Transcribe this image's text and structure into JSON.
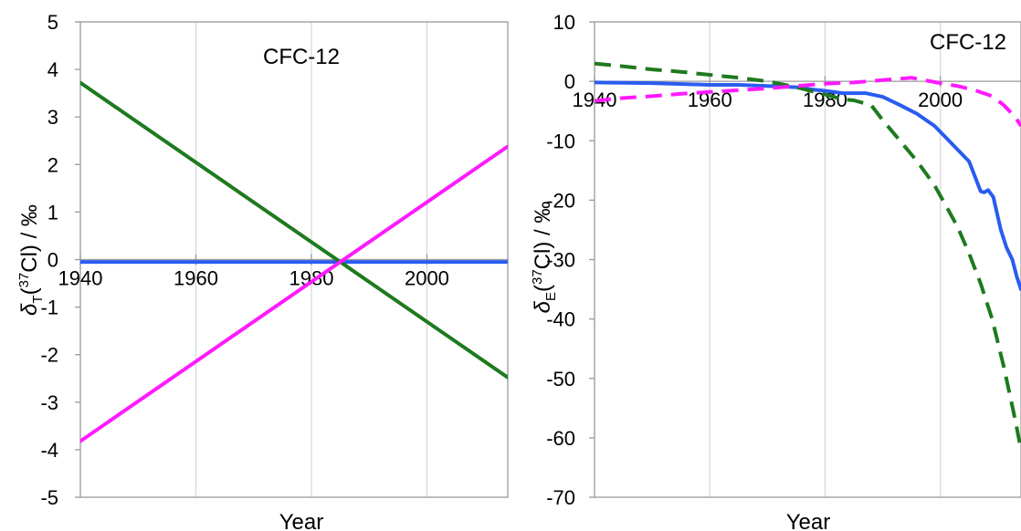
{
  "chart_data": [
    {
      "type": "line",
      "title": "CFC-12",
      "xlabel": "Year",
      "ylabel": "δT(37Cl) / ‰",
      "ylabel_parts": {
        "delta": "δ",
        "sub": "T",
        "open": "(",
        "sup": "37",
        "elem": "Cl) / ‰"
      },
      "xlim": [
        1940,
        2014
      ],
      "ylim": [
        -5,
        5
      ],
      "xticks": [
        "1940",
        "1960",
        "1980",
        "2000"
      ],
      "xtick_values": [
        1940,
        1960,
        1980,
        2000
      ],
      "yticks": [
        "5",
        "4",
        "3",
        "2",
        "1",
        "0",
        "-1",
        "-2",
        "-3",
        "-4",
        "-5"
      ],
      "ytick_values": [
        5,
        4,
        3,
        2,
        1,
        0,
        -1,
        -2,
        -3,
        -4,
        -5
      ],
      "grid": "vertical",
      "series": [
        {
          "color": "#2b5cf0",
          "dash": false,
          "x": [
            1940,
            2014
          ],
          "y": [
            -0.05,
            -0.05
          ]
        },
        {
          "color": "#1e7a1e",
          "dash": false,
          "x": [
            1940,
            2014
          ],
          "y": [
            3.72,
            -2.48
          ]
        },
        {
          "color": "#ff1aff",
          "dash": false,
          "x": [
            1940,
            2014
          ],
          "y": [
            -3.82,
            2.38
          ]
        }
      ]
    },
    {
      "type": "line",
      "title": "CFC-12",
      "xlabel": "Year",
      "ylabel": "δE(37Cl) / ‰",
      "ylabel_parts": {
        "delta": "δ",
        "sub": "E",
        "open": "(",
        "sup": "37",
        "elem": "Cl) / ‰"
      },
      "xlim": [
        1940,
        2014
      ],
      "ylim": [
        -70,
        10
      ],
      "xticks": [
        "1940",
        "1960",
        "1980",
        "2000"
      ],
      "xtick_values": [
        1940,
        1960,
        1980,
        2000
      ],
      "yticks": [
        "10",
        "0",
        "-10",
        "-20",
        "-30",
        "-40",
        "-50",
        "-60",
        "-70"
      ],
      "ytick_values": [
        10,
        0,
        -10,
        -20,
        -30,
        -40,
        -50,
        -60,
        -70
      ],
      "grid": "vertical",
      "series": [
        {
          "color": "#2b5cf0",
          "dash": false,
          "x": [
            1940,
            1950,
            1960,
            1965,
            1970,
            1975,
            1978,
            1980,
            1983,
            1985,
            1987,
            1990,
            1993,
            1996,
            1999,
            2001,
            2003,
            2005,
            2006,
            2007,
            2007.6,
            2008.3,
            2009.2,
            2010.5,
            2011.5,
            2012.5,
            2013.3,
            2014
          ],
          "y": [
            -0.2,
            -0.3,
            -0.6,
            -0.6,
            -0.8,
            -1.0,
            -1.4,
            -1.6,
            -2.0,
            -2.0,
            -2.0,
            -2.6,
            -4.0,
            -5.5,
            -7.5,
            -9.5,
            -11.5,
            -13.5,
            -16.0,
            -18.5,
            -18.7,
            -18.3,
            -19.5,
            -25.0,
            -28.0,
            -30.0,
            -33.0,
            -35.0
          ]
        },
        {
          "color": "#1e7a1e",
          "dash": true,
          "x": [
            1940,
            1945,
            1950,
            1955,
            1960,
            1965,
            1970,
            1975,
            1980,
            1983,
            1985,
            1988,
            1990,
            1993,
            1996,
            1999,
            2001,
            2003,
            2005,
            2007,
            2009,
            2011,
            2013,
            2014
          ],
          "y": [
            3.0,
            2.5,
            2.0,
            1.6,
            1.1,
            0.6,
            0.0,
            -1.0,
            -2.2,
            -3.0,
            -3.2,
            -4.0,
            -6.5,
            -10.0,
            -13.5,
            -17.5,
            -21.0,
            -24.5,
            -29.0,
            -34.0,
            -40.0,
            -48.0,
            -57.0,
            -62.0
          ]
        },
        {
          "color": "#ff1aff",
          "dash": true,
          "x": [
            1940,
            1945,
            1950,
            1955,
            1960,
            1965,
            1970,
            1975,
            1980,
            1985,
            1990,
            1995,
            2000,
            2003,
            2006,
            2009,
            2011,
            2013,
            2014
          ],
          "y": [
            -3.3,
            -2.8,
            -2.5,
            -2.1,
            -1.8,
            -1.5,
            -1.2,
            -0.8,
            -0.4,
            -0.2,
            0.2,
            0.6,
            -0.3,
            -0.8,
            -1.5,
            -2.5,
            -4.0,
            -6.0,
            -7.5
          ]
        }
      ]
    }
  ]
}
